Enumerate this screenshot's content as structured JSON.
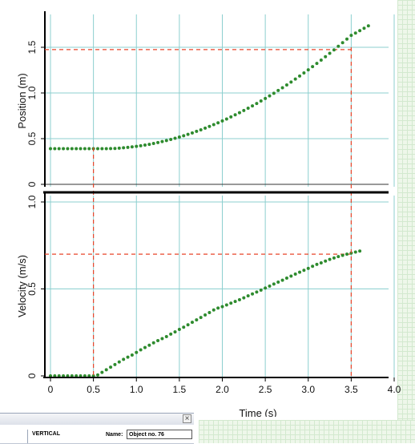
{
  "chart_data": [
    {
      "type": "scatter",
      "ylabel": "Position (m)",
      "xlim": [
        0,
        4.0
      ],
      "ylim": [
        0,
        1.6
      ],
      "ytick_labels": [
        "0",
        "0.5",
        "1.0",
        "1.5"
      ],
      "yticks": [
        0,
        0.5,
        1.0,
        1.5
      ],
      "grid": true,
      "colors": {
        "points": "#2e8b2e",
        "grid": "#8ccfcf",
        "guide": "#e8452a"
      },
      "series": [
        {
          "x": [
            0.0,
            0.05,
            0.1,
            0.15,
            0.2,
            0.25,
            0.3,
            0.35,
            0.4,
            0.45,
            0.5,
            0.55,
            0.6,
            0.65,
            0.7,
            0.75,
            0.8,
            0.85,
            0.9,
            0.95,
            1.0,
            1.05,
            1.1,
            1.15,
            1.2,
            1.25,
            1.3,
            1.35,
            1.4,
            1.45,
            1.5,
            1.55,
            1.6,
            1.65,
            1.7,
            1.75,
            1.8,
            1.85,
            1.9,
            1.95,
            2.0,
            2.05,
            2.1,
            2.15,
            2.2,
            2.25,
            2.3,
            2.35,
            2.4,
            2.45,
            2.5,
            2.55,
            2.6,
            2.65,
            2.7,
            2.75,
            2.8,
            2.85,
            2.9,
            2.95,
            3.0,
            3.05,
            3.1,
            3.15,
            3.2,
            3.25,
            3.3,
            3.35,
            3.4,
            3.45,
            3.5,
            3.55,
            3.6,
            3.65,
            3.7
          ],
          "y": [
            0.39,
            0.39,
            0.39,
            0.39,
            0.39,
            0.39,
            0.39,
            0.39,
            0.39,
            0.39,
            0.39,
            0.39,
            0.39,
            0.39,
            0.391,
            0.393,
            0.396,
            0.4,
            0.405,
            0.41,
            0.416,
            0.422,
            0.43,
            0.438,
            0.447,
            0.457,
            0.468,
            0.479,
            0.491,
            0.504,
            0.518,
            0.532,
            0.547,
            0.563,
            0.58,
            0.597,
            0.615,
            0.634,
            0.653,
            0.673,
            0.694,
            0.715,
            0.738,
            0.761,
            0.784,
            0.808,
            0.833,
            0.859,
            0.885,
            0.912,
            0.94,
            0.968,
            0.997,
            1.027,
            1.057,
            1.088,
            1.12,
            1.152,
            1.185,
            1.219,
            1.253,
            1.288,
            1.324,
            1.36,
            1.397,
            1.434,
            1.472,
            1.511,
            1.55,
            1.59,
            1.63,
            1.656,
            1.682,
            1.708,
            1.735
          ]
        }
      ],
      "guides": {
        "x": [
          0.5,
          3.5
        ],
        "y": 1.475
      }
    },
    {
      "type": "scatter",
      "xlabel": "Time (s)",
      "ylabel": "Velocity (m/s)",
      "xlim": [
        0,
        4.0
      ],
      "ylim": [
        0,
        1.0
      ],
      "xtick_labels": [
        "0",
        "0.5",
        "1.0",
        "1.5",
        "2.0",
        "2.5",
        "3.0",
        "3.5",
        "4.0"
      ],
      "xticks": [
        0,
        0.5,
        1.0,
        1.5,
        2.0,
        2.5,
        3.0,
        3.5,
        4.0
      ],
      "ytick_labels": [
        "0",
        "0.5",
        "1.0"
      ],
      "yticks": [
        0,
        0.5,
        1.0
      ],
      "grid": true,
      "colors": {
        "points": "#2e8b2e",
        "grid": "#8ccfcf",
        "guide": "#e8452a"
      },
      "series": [
        {
          "x": [
            0.0,
            0.05,
            0.1,
            0.15,
            0.2,
            0.25,
            0.3,
            0.35,
            0.4,
            0.45,
            0.5,
            0.55,
            0.6,
            0.65,
            0.7,
            0.75,
            0.8,
            0.85,
            0.9,
            0.95,
            1.0,
            1.05,
            1.1,
            1.15,
            1.2,
            1.25,
            1.3,
            1.35,
            1.4,
            1.45,
            1.5,
            1.55,
            1.6,
            1.65,
            1.7,
            1.75,
            1.8,
            1.85,
            1.9,
            1.95,
            2.0,
            2.05,
            2.1,
            2.15,
            2.2,
            2.25,
            2.3,
            2.35,
            2.4,
            2.45,
            2.5,
            2.55,
            2.6,
            2.65,
            2.7,
            2.75,
            2.8,
            2.85,
            2.9,
            2.95,
            3.0,
            3.05,
            3.1,
            3.15,
            3.2,
            3.25,
            3.3,
            3.35,
            3.4,
            3.45,
            3.5,
            3.55,
            3.6
          ],
          "y": [
            0.0,
            0.0,
            0.0,
            0.0,
            0.0,
            0.0,
            0.0,
            0.0,
            0.0,
            0.0,
            0.0,
            0.005,
            0.02,
            0.035,
            0.05,
            0.065,
            0.08,
            0.095,
            0.108,
            0.12,
            0.135,
            0.15,
            0.163,
            0.176,
            0.19,
            0.203,
            0.214,
            0.226,
            0.24,
            0.253,
            0.267,
            0.28,
            0.294,
            0.308,
            0.322,
            0.336,
            0.35,
            0.364,
            0.379,
            0.39,
            0.398,
            0.408,
            0.418,
            0.428,
            0.438,
            0.449,
            0.46,
            0.471,
            0.482,
            0.493,
            0.505,
            0.516,
            0.528,
            0.539,
            0.55,
            0.562,
            0.574,
            0.585,
            0.596,
            0.607,
            0.618,
            0.63,
            0.641,
            0.65,
            0.66,
            0.67,
            0.678,
            0.686,
            0.693,
            0.7,
            0.706,
            0.712,
            0.718
          ]
        }
      ],
      "guides": {
        "x": [
          0.5,
          3.5
        ],
        "y": 0.7
      }
    }
  ],
  "panel": {
    "close_glyph": "×",
    "mode_label": "VERTICAL",
    "name_label": "Name:",
    "name_value": "Object no. 76"
  }
}
